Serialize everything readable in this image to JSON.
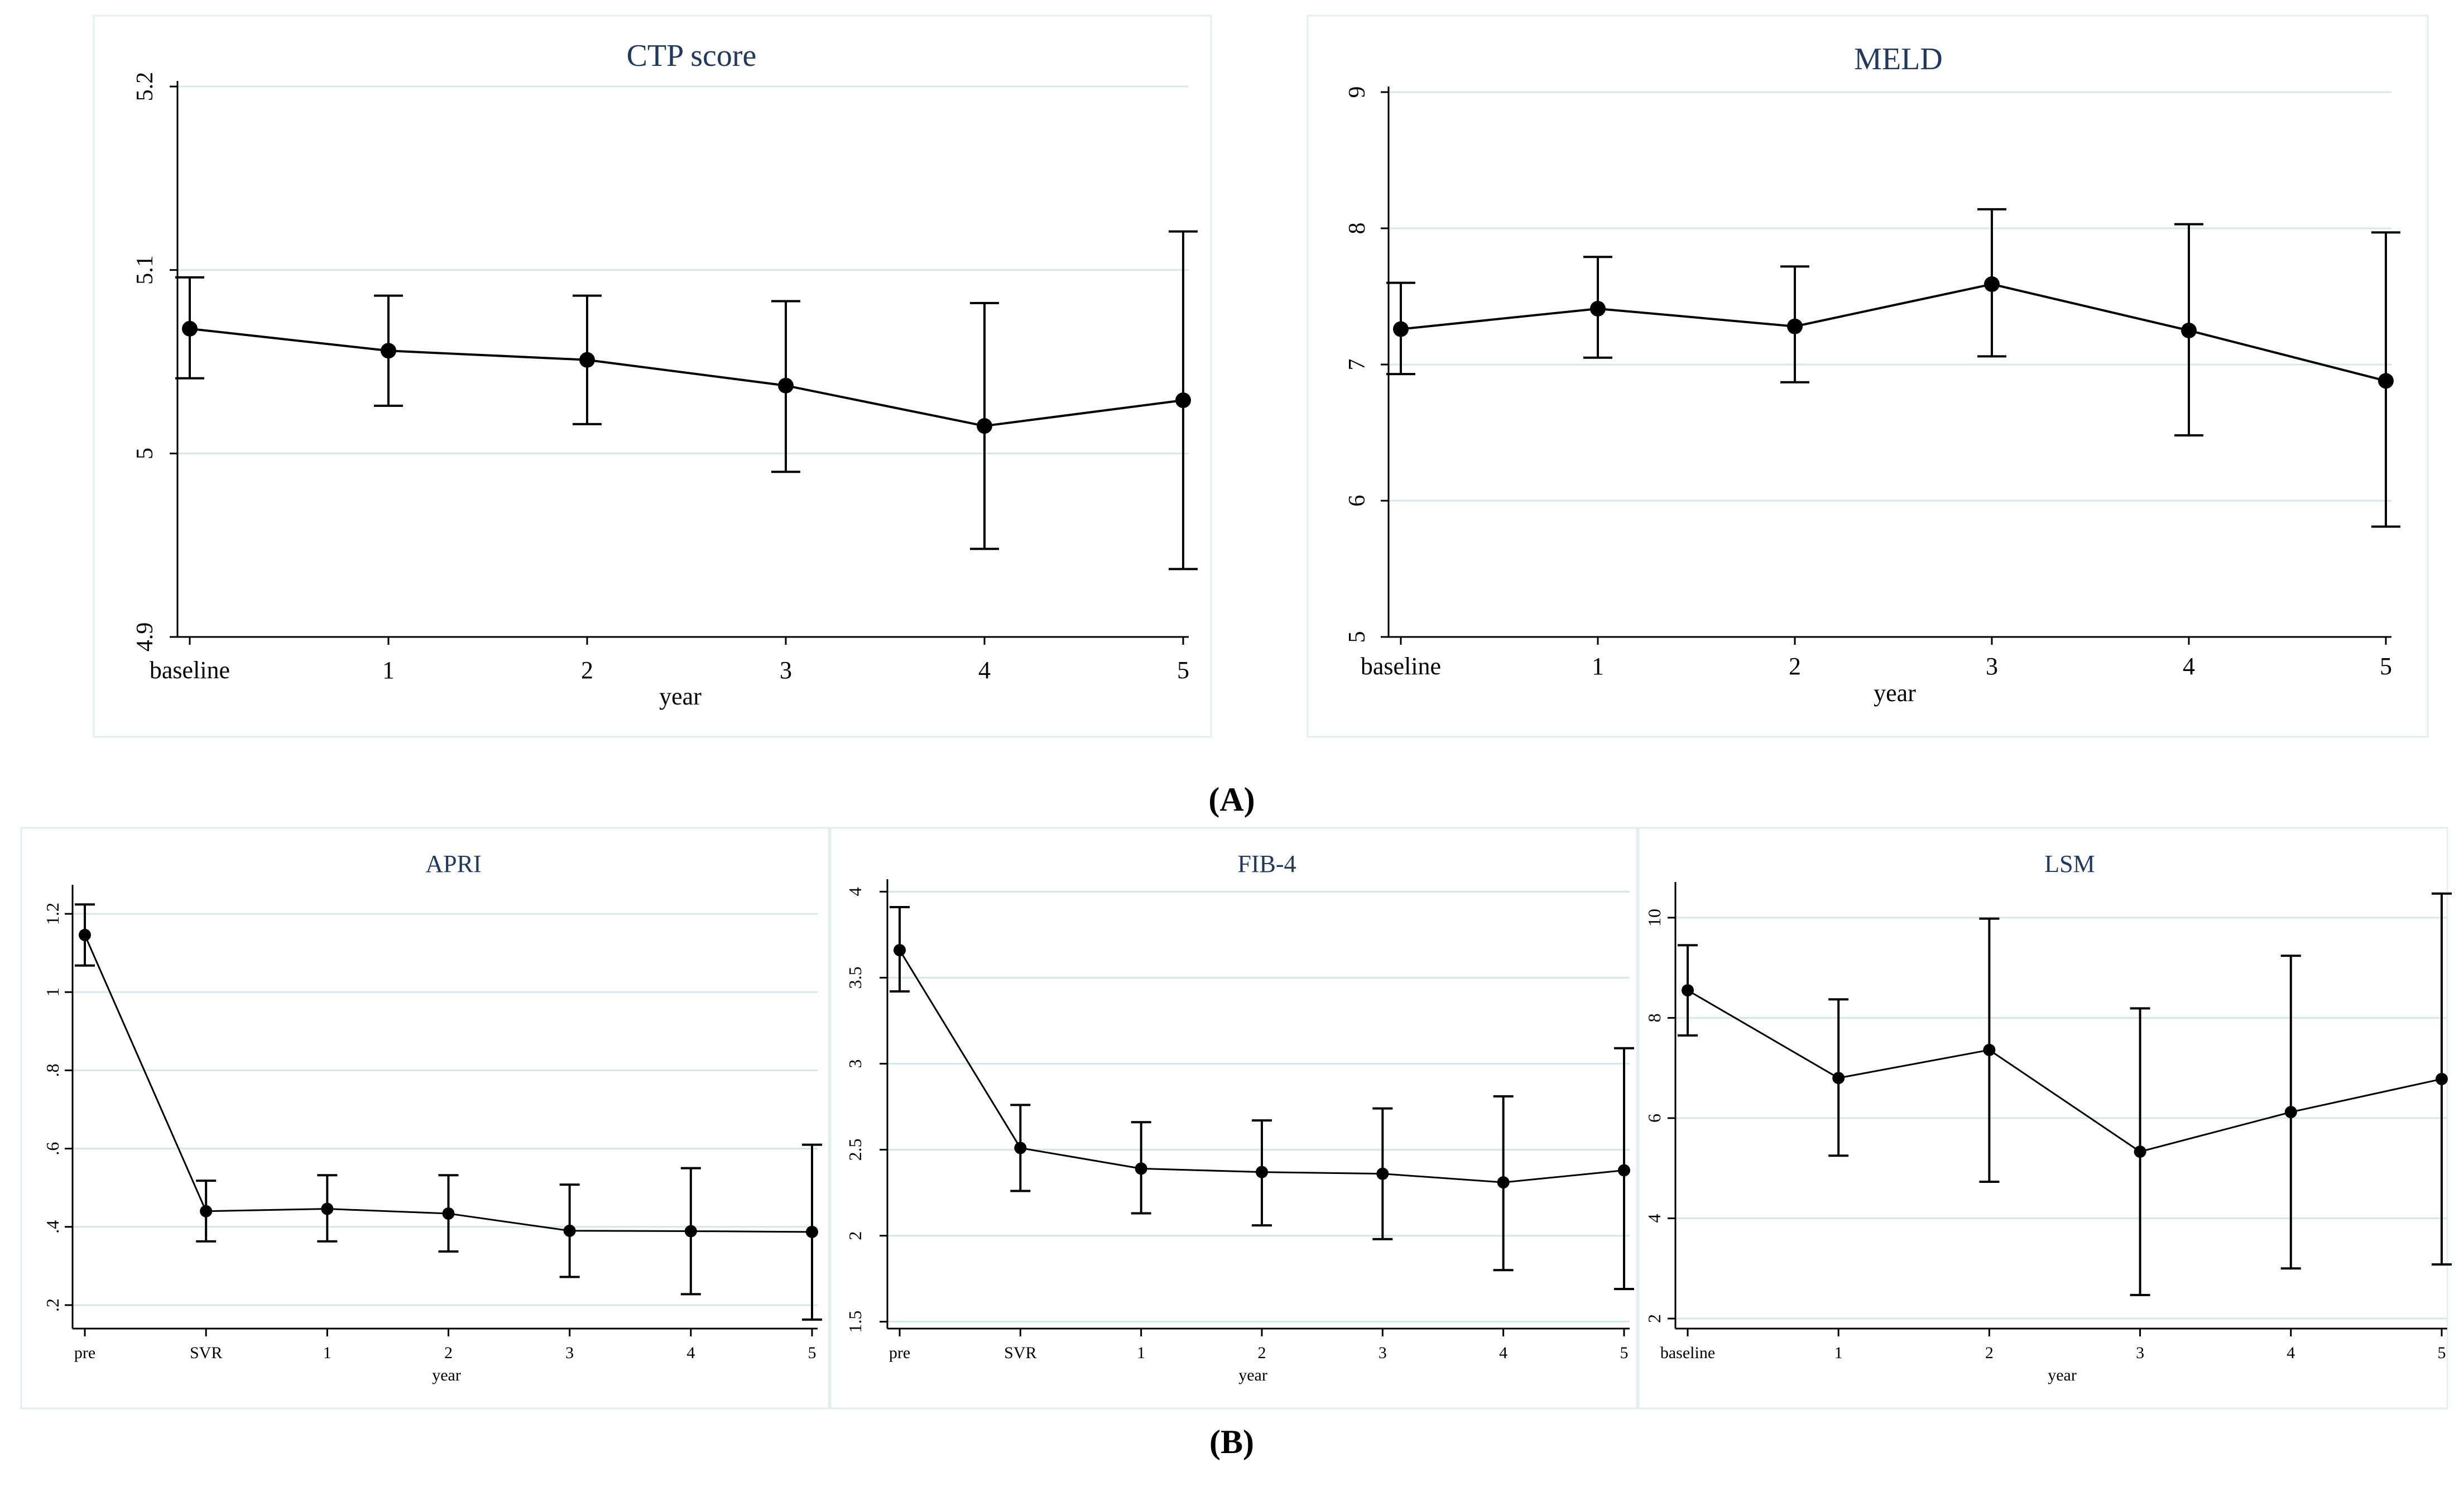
{
  "panel_labels": {
    "a": "A",
    "b": "B"
  },
  "chart_data": [
    {
      "type": "line",
      "title": "CTP score",
      "xlabel": "year",
      "ylabel": "",
      "categories": [
        "baseline",
        "1",
        "2",
        "3",
        "4",
        "5"
      ],
      "values": [
        5.068,
        5.056,
        5.051,
        5.037,
        5.015,
        5.029
      ],
      "error_low": [
        5.041,
        5.026,
        5.016,
        4.99,
        4.948,
        4.937
      ],
      "error_high": [
        5.096,
        5.086,
        5.086,
        5.083,
        5.082,
        5.121
      ],
      "ylim": [
        4.9,
        5.2
      ],
      "yticks": [
        4.9,
        5,
        5.1,
        5.2
      ],
      "ytick_labels": [
        "4.9",
        "5",
        "5.1",
        "5.2"
      ],
      "grid": true
    },
    {
      "type": "line",
      "title": "MELD",
      "xlabel": "year",
      "ylabel": "",
      "categories": [
        "baseline",
        "1",
        "2",
        "3",
        "4",
        "5"
      ],
      "values": [
        7.26,
        7.41,
        7.28,
        7.59,
        7.25,
        6.88
      ],
      "error_low": [
        6.93,
        7.05,
        6.87,
        7.06,
        6.48,
        5.81
      ],
      "error_high": [
        7.6,
        7.79,
        7.72,
        8.14,
        8.03,
        7.97
      ],
      "ylim": [
        5,
        9
      ],
      "yticks": [
        5,
        6,
        7,
        8,
        9
      ],
      "ytick_labels": [
        "5",
        "6",
        "7",
        "8",
        "9"
      ],
      "grid": true
    },
    {
      "type": "line",
      "title": "APRI",
      "xlabel": "year",
      "ylabel": "",
      "categories": [
        "pre",
        "SVR",
        "1",
        "2",
        "3",
        "4",
        "5"
      ],
      "values": [
        1.146,
        0.44,
        0.446,
        0.434,
        0.39,
        0.389,
        0.387
      ],
      "error_low": [
        1.068,
        0.363,
        0.363,
        0.337,
        0.272,
        0.228,
        0.163
      ],
      "error_high": [
        1.224,
        0.518,
        0.532,
        0.532,
        0.508,
        0.55,
        0.61
      ],
      "ylim": [
        0.14,
        1.26
      ],
      "yticks": [
        0.2,
        0.4,
        0.6,
        0.8,
        1,
        1.2
      ],
      "ytick_labels": [
        ".2",
        ".4",
        ".6",
        ".8",
        "1",
        "1.2"
      ],
      "grid": true
    },
    {
      "type": "line",
      "title": "FIB-4",
      "xlabel": "year",
      "ylabel": "",
      "categories": [
        "pre",
        "SVR",
        "1",
        "2",
        "3",
        "4",
        "5"
      ],
      "values": [
        3.66,
        2.51,
        2.39,
        2.37,
        2.36,
        2.31,
        2.38
      ],
      "error_low": [
        3.42,
        2.26,
        2.13,
        2.06,
        1.98,
        1.8,
        1.69
      ],
      "error_high": [
        3.91,
        2.76,
        2.66,
        2.67,
        2.74,
        2.81,
        3.09
      ],
      "ylim": [
        1.46,
        4.04
      ],
      "yticks": [
        1.5,
        2,
        2.5,
        3,
        3.5,
        4
      ],
      "ytick_labels": [
        "1.5",
        "2",
        "2.5",
        "3",
        "3.5",
        "4"
      ],
      "grid": true
    },
    {
      "type": "line",
      "title": "LSM",
      "xlabel": "year",
      "ylabel": "",
      "categories": [
        "baseline",
        "1",
        "2",
        "3",
        "4",
        "5"
      ],
      "values": [
        8.55,
        6.8,
        7.36,
        5.33,
        6.12,
        6.78
      ],
      "error_low": [
        7.65,
        5.25,
        4.73,
        2.47,
        3.0,
        3.08
      ],
      "error_high": [
        9.45,
        8.37,
        9.98,
        8.19,
        9.24,
        10.48
      ],
      "ylim": [
        1.8,
        10.6
      ],
      "yticks": [
        2,
        4,
        6,
        8,
        10
      ],
      "ytick_labels": [
        "2",
        "4",
        "6",
        "8",
        "10"
      ],
      "grid": true
    }
  ]
}
